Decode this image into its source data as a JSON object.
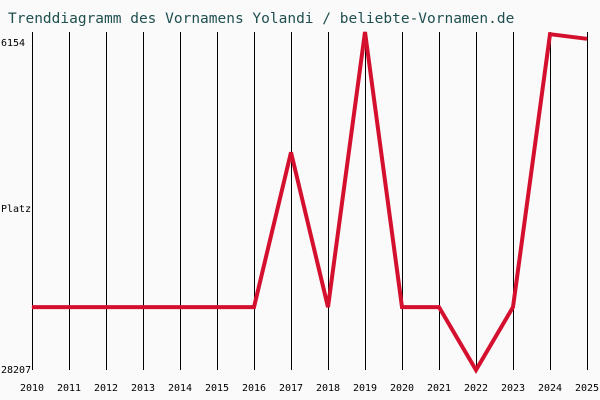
{
  "chart_data": {
    "type": "line",
    "title": "Trenddiagramm des Vornamens Yolandi / beliebte-Vornamen.de",
    "ylabel": "Platz",
    "xlabel": "",
    "y_tick_labels": [
      "6154",
      "28207"
    ],
    "ylim": [
      6154,
      28207
    ],
    "y_inverted": true,
    "grid": "vertical",
    "x": [
      "2010",
      "2011",
      "2012",
      "2013",
      "2014",
      "2015",
      "2016",
      "2017",
      "2018",
      "2019",
      "2020",
      "2021",
      "2022",
      "2023",
      "2024",
      "2025"
    ],
    "series": [
      {
        "values": [
          24100,
          24100,
          24100,
          24100,
          24100,
          24100,
          24100,
          14000,
          24100,
          6154,
          24100,
          24100,
          28207,
          24100,
          6300,
          6600
        ]
      }
    ],
    "colors": {
      "line": "#d5102e",
      "grid": "#000000",
      "title": "#1f4f4f",
      "background": "#fafafa"
    }
  }
}
